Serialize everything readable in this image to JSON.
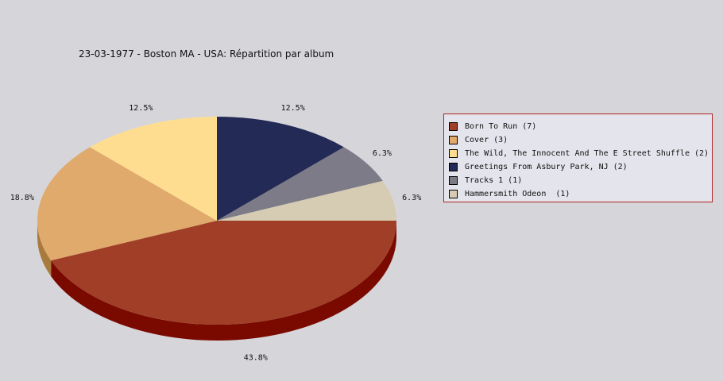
{
  "chart_data": {
    "type": "pie",
    "title": "23-03-1977 - Boston MA - USA:  Répartition par album",
    "legend_position": "right",
    "slices": [
      {
        "name": "Born To Run",
        "legend_label": "Born To Run (7)",
        "count": 7,
        "value": 43.8,
        "label": "43.8%",
        "color": "#a03e28",
        "side_color": "#7a0a00"
      },
      {
        "name": "Cover",
        "legend_label": "Cover (3)",
        "count": 3,
        "value": 18.8,
        "label": "18.8%",
        "color": "#e0aa6c",
        "side_color": "#a87a3e"
      },
      {
        "name": "The Wild, The Innocent And The E Street Shuffle",
        "legend_label": "The Wild, The Innocent And The E Street Shuffle (2)",
        "count": 2,
        "value": 12.5,
        "label": "12.5%",
        "color": "#ffdd90",
        "side_color": "#c9ad68"
      },
      {
        "name": "Greetings From Asbury Park, NJ",
        "legend_label": "Greetings From Asbury Park, NJ (2)",
        "count": 2,
        "value": 12.5,
        "label": "12.5%",
        "color": "#222a55",
        "side_color": "#12183a"
      },
      {
        "name": "Tracks 1",
        "legend_label": "Tracks 1 (1)",
        "count": 1,
        "value": 6.3,
        "label": "6.3%",
        "color": "#7c7b87",
        "side_color": "#55545e"
      },
      {
        "name": "Hammersmith Odeon",
        "legend_label": "Hammersmith Odeon  (1)",
        "count": 1,
        "value": 6.3,
        "label": "6.3%",
        "color": "#d6ccb4",
        "side_color": "#a8a08c"
      }
    ]
  }
}
